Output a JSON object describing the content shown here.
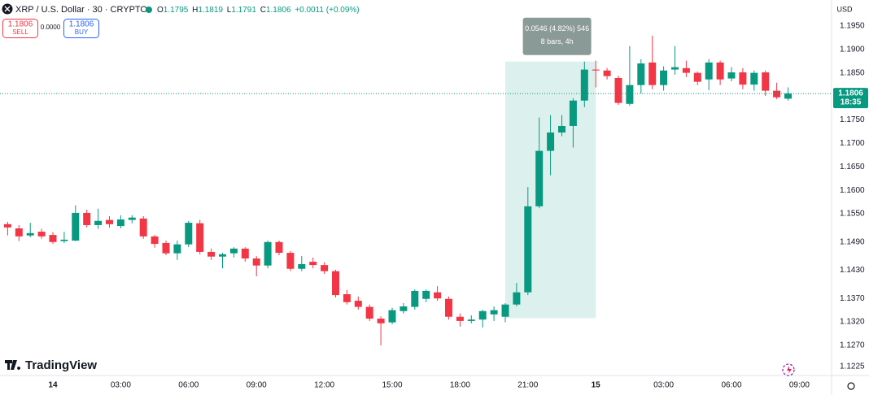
{
  "chart_data": {
    "type": "candlestick",
    "title": "XRP / U.S. Dollar · 30 · CRYPTO",
    "currency": "USD",
    "ohlc_letters": [
      "O",
      "H",
      "L",
      "C"
    ],
    "change": "+0.0011 (+0.09%)",
    "sell_label": "SELL",
    "buy_label": "BUY",
    "spread": "0.0000",
    "countdown": "18:35",
    "logo": "TradingView",
    "up_color": "#089981",
    "down_color": "#f23645",
    "grid": false,
    "categories": [
      null,
      null,
      null,
      null,
      "14",
      null,
      null,
      null,
      null,
      null,
      "03:00",
      null,
      null,
      null,
      null,
      null,
      "06:00",
      null,
      null,
      null,
      null,
      null,
      "09:00",
      null,
      null,
      null,
      null,
      null,
      "12:00",
      null,
      null,
      null,
      null,
      null,
      "15:00",
      null,
      null,
      null,
      null,
      null,
      "18:00",
      null,
      null,
      null,
      null,
      null,
      "21:00",
      null,
      null,
      null,
      null,
      null,
      "15",
      null,
      null,
      null,
      null,
      null,
      "03:00",
      null,
      null,
      null,
      null,
      null,
      "06:00",
      null,
      null,
      null,
      null,
      null,
      "09:00"
    ],
    "open": [
      1.1528,
      1.1519,
      1.1504,
      1.1512,
      1.1505,
      1.1492,
      1.1493,
      1.1552,
      1.1526,
      1.1537,
      1.1524,
      1.1537,
      1.154,
      1.1502,
      1.1488,
      1.1466,
      1.1485,
      1.153,
      1.1469,
      1.1459,
      1.1466,
      1.1476,
      1.1455,
      1.144,
      1.149,
      1.1467,
      1.1433,
      1.1448,
      1.1441,
      1.1428,
      1.1379,
      1.1365,
      1.1352,
      1.1327,
      1.1319,
      1.1343,
      1.1352,
      1.1369,
      1.1383,
      1.1369,
      1.1331,
      1.1322,
      1.1325,
      1.1336,
      1.1331,
      1.1357,
      1.1383,
      1.1566,
      1.1684,
      1.1723,
      1.1737,
      1.1791,
      1.1857,
      1.1855,
      1.1839,
      1.1784,
      1.1824,
      1.1872,
      1.1824,
      1.1857,
      1.186,
      1.185,
      1.1836,
      1.1872,
      1.1838,
      1.1851,
      1.1825,
      1.1851,
      1.1812,
      1.1795,
      null
    ],
    "high": [
      1.1533,
      1.1526,
      1.1531,
      1.1518,
      1.1511,
      1.1512,
      1.1568,
      1.1559,
      1.1561,
      1.1545,
      1.1547,
      1.1547,
      1.1545,
      1.1505,
      1.1493,
      1.1493,
      1.1535,
      1.1537,
      1.1476,
      1.1467,
      1.1479,
      1.1479,
      1.146,
      1.1493,
      1.1493,
      1.1471,
      1.146,
      1.1457,
      1.1447,
      1.1431,
      1.1388,
      1.1374,
      1.1357,
      1.1332,
      1.135,
      1.136,
      1.1389,
      1.1389,
      1.1396,
      1.1374,
      1.1338,
      1.1334,
      1.1346,
      1.1353,
      1.136,
      1.1403,
      1.1607,
      1.1755,
      1.176,
      1.176,
      1.1796,
      1.1874,
      1.1876,
      1.186,
      1.1844,
      1.1907,
      1.1879,
      1.1929,
      1.1864,
      1.1907,
      1.1876,
      1.1853,
      1.1879,
      1.1876,
      1.1862,
      1.186,
      1.1855,
      1.1855,
      1.1829,
      1.1819,
      null
    ],
    "low": [
      1.1504,
      1.1492,
      1.15,
      1.1497,
      1.1486,
      1.1488,
      1.1492,
      1.1521,
      1.1518,
      1.1521,
      1.1519,
      1.153,
      1.1497,
      1.1478,
      1.1462,
      1.1452,
      1.1479,
      1.1464,
      1.1452,
      1.1434,
      1.1457,
      1.1448,
      1.1417,
      1.1434,
      1.1462,
      1.1428,
      1.1428,
      1.1434,
      1.1422,
      1.1372,
      1.1357,
      1.1346,
      1.1322,
      1.127,
      1.1315,
      1.1338,
      1.1346,
      1.1362,
      1.1365,
      1.1325,
      1.131,
      1.1317,
      1.1308,
      1.1322,
      1.1319,
      1.1353,
      1.1377,
      1.1562,
      1.1632,
      1.1715,
      1.1691,
      1.1777,
      1.1819,
      1.1836,
      1.1782,
      1.178,
      1.1806,
      1.1815,
      1.1812,
      1.1846,
      1.1841,
      1.1824,
      1.1813,
      1.1824,
      1.1832,
      1.1815,
      1.1812,
      1.1801,
      1.1794,
      1.1791,
      null
    ],
    "close": [
      1.1521,
      1.1502,
      1.1509,
      1.1502,
      1.149,
      1.1495,
      1.1552,
      1.1526,
      1.1535,
      1.1528,
      1.1538,
      1.1542,
      1.1502,
      1.1486,
      1.1466,
      1.1485,
      1.1531,
      1.1469,
      1.1459,
      1.1464,
      1.1476,
      1.1455,
      1.144,
      1.149,
      1.1467,
      1.1433,
      1.1443,
      1.1441,
      1.1428,
      1.1377,
      1.1362,
      1.1352,
      1.1327,
      1.1317,
      1.1345,
      1.1353,
      1.1386,
      1.1386,
      1.137,
      1.1331,
      1.1322,
      1.1325,
      1.1343,
      1.1345,
      1.1357,
      1.1383,
      1.1566,
      1.1684,
      1.1723,
      1.1737,
      1.1791,
      1.1857,
      1.1855,
      1.1843,
      1.1786,
      1.1824,
      1.187,
      1.1824,
      1.1855,
      1.1862,
      1.185,
      1.1831,
      1.1872,
      1.1836,
      1.1851,
      1.1825,
      1.185,
      1.1812,
      1.1798,
      1.1806,
      null
    ],
    "ylim": [
      1.1206,
      1.2005
    ],
    "yticks": [
      {
        "value": 1.195,
        "label": "1.1950"
      },
      {
        "value": 1.19,
        "label": "1.1900"
      },
      {
        "value": 1.185,
        "label": "1.1850"
      },
      {
        "value": 1.175,
        "label": "1.1750"
      },
      {
        "value": 1.17,
        "label": "1.1700"
      },
      {
        "value": 1.165,
        "label": "1.1650"
      },
      {
        "value": 1.16,
        "label": "1.1600"
      },
      {
        "value": 1.155,
        "label": "1.1550"
      },
      {
        "value": 1.149,
        "label": "1.1490"
      },
      {
        "value": 1.143,
        "label": "1.1430"
      },
      {
        "value": 1.137,
        "label": "1.1370"
      },
      {
        "value": 1.132,
        "label": "1.1320"
      },
      {
        "value": 1.127,
        "label": "1.1270"
      },
      {
        "value": 1.1225,
        "label": "1.1225"
      }
    ],
    "measure": {
      "low": 1.1328,
      "high": 1.1874,
      "label": "0.0546 (4.82%) 546",
      "bars_label": "8 bars, 4h",
      "color": "#089981"
    }
  }
}
